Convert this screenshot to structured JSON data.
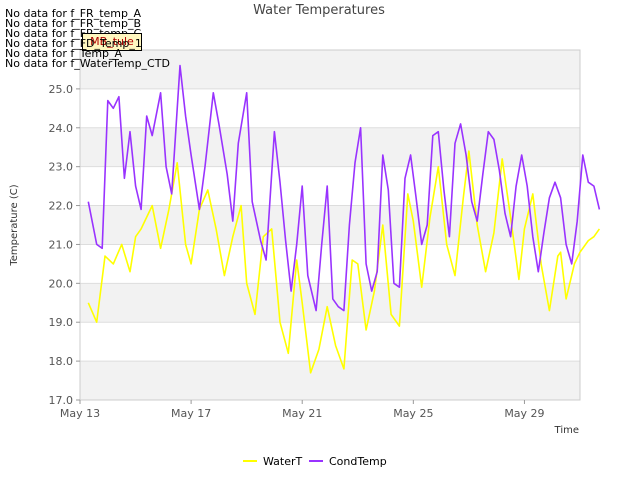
{
  "no_data_messages": [
    "No data for f_FR_temp_A",
    "No data for f_FR_temp_B",
    "No data for f_FR_temp_C",
    "No data for f_FD_Temp_1",
    "No data for f_Temp_A",
    "No data for f_WaterTemp_CTD"
  ],
  "tag_label": "MB_tule",
  "chart_data": {
    "type": "line",
    "title": "Water Temperatures",
    "xlabel": "Time",
    "ylabel": "Temperature (C)",
    "ylim": [
      17.0,
      26.0
    ],
    "yticks": [
      17.0,
      18.0,
      19.0,
      20.0,
      21.0,
      22.0,
      23.0,
      24.0,
      25.0
    ],
    "xlim": [
      13,
      31
    ],
    "xticks": [
      {
        "day": 13,
        "label": "May 13"
      },
      {
        "day": 17,
        "label": "May 17"
      },
      {
        "day": 21,
        "label": "May 21"
      },
      {
        "day": 25,
        "label": "May 25"
      },
      {
        "day": 29,
        "label": "May 29"
      }
    ],
    "grid": "horizontal bands",
    "legend_position": "bottom",
    "series": [
      {
        "name": "WaterT",
        "color": "#ffff00",
        "x": [
          13.3,
          13.6,
          13.9,
          14.2,
          14.5,
          14.8,
          15.0,
          15.2,
          15.6,
          15.9,
          16.2,
          16.5,
          16.8,
          17.0,
          17.3,
          17.6,
          17.9,
          18.2,
          18.5,
          18.8,
          19.0,
          19.3,
          19.6,
          19.9,
          20.2,
          20.5,
          20.8,
          21.0,
          21.3,
          21.6,
          21.9,
          22.2,
          22.5,
          22.8,
          23.0,
          23.3,
          23.6,
          23.9,
          24.2,
          24.5,
          24.8,
          25.0,
          25.3,
          25.6,
          25.9,
          26.2,
          26.5,
          26.8,
          27.0,
          27.3,
          27.6,
          27.9,
          28.2,
          28.5,
          28.8,
          29.0,
          29.3,
          29.6,
          29.9,
          30.2,
          30.3
        ],
        "y": [
          19.5,
          19.0,
          20.7,
          20.5,
          21.0,
          20.3,
          21.2,
          21.4,
          22.0,
          20.9,
          21.9,
          23.1,
          21.0,
          20.5,
          21.9,
          22.4,
          21.4,
          20.2,
          21.2,
          22.0,
          20.0,
          19.2,
          21.2,
          21.4,
          19.0,
          18.2,
          20.6,
          19.5,
          17.7,
          18.3,
          19.4,
          18.4,
          17.8,
          20.6,
          20.5,
          18.8,
          19.8,
          21.5,
          19.2,
          18.9,
          22.3,
          21.6,
          19.9,
          21.7,
          23.0,
          21.0,
          20.2,
          22.2,
          23.4,
          21.5,
          20.3,
          21.3,
          23.2,
          21.7,
          20.1,
          21.4,
          22.3,
          20.5,
          19.3,
          20.7,
          20.8
        ],
        "tail": {
          "x": [
            30.5,
            30.8,
            31.0,
            31.3,
            31.5,
            31.7
          ],
          "y": [
            19.6,
            20.5,
            20.8,
            21.1,
            21.2,
            21.4
          ]
        }
      },
      {
        "name": "CondTemp",
        "color": "#9933ff",
        "x": [
          13.3,
          13.6,
          13.8,
          14.0,
          14.2,
          14.4,
          14.6,
          14.8,
          15.0,
          15.2,
          15.4,
          15.6,
          15.9,
          16.1,
          16.3,
          16.6,
          16.8,
          17.0,
          17.3,
          17.5,
          17.8,
          18.0,
          18.3,
          18.5,
          18.7,
          19.0,
          19.2,
          19.5,
          19.7,
          20.0,
          20.2,
          20.4,
          20.6,
          20.8,
          21.0,
          21.2,
          21.5,
          21.7,
          21.9,
          22.1,
          22.3,
          22.5,
          22.7,
          22.9,
          23.1,
          23.3,
          23.5,
          23.7,
          23.9,
          24.1,
          24.3,
          24.5,
          24.7,
          24.9,
          25.1,
          25.3,
          25.5,
          25.7,
          25.9,
          26.1,
          26.3,
          26.5,
          26.7,
          26.9,
          27.1,
          27.3,
          27.5,
          27.7,
          27.9,
          28.1,
          28.3,
          28.5,
          28.7,
          28.9,
          29.1,
          29.3,
          29.5,
          29.7,
          29.9,
          30.1,
          30.3,
          30.5,
          30.7,
          30.9,
          31.1,
          31.3,
          31.5,
          31.7
        ],
        "y": [
          22.1,
          21.0,
          20.9,
          24.7,
          24.5,
          24.8,
          22.7,
          23.9,
          22.5,
          21.9,
          24.3,
          23.8,
          24.9,
          23.0,
          22.3,
          25.6,
          24.3,
          23.3,
          21.9,
          23.0,
          24.9,
          24.1,
          22.8,
          21.6,
          23.6,
          24.9,
          22.1,
          21.1,
          20.6,
          23.9,
          22.6,
          21.1,
          19.8,
          21.0,
          22.5,
          20.2,
          19.3,
          21.0,
          22.5,
          19.6,
          19.4,
          19.3,
          21.5,
          23.1,
          24.0,
          20.5,
          19.8,
          20.3,
          23.3,
          22.4,
          20.0,
          19.9,
          22.7,
          23.3,
          22.2,
          21.0,
          21.5,
          23.8,
          23.9,
          22.4,
          21.2,
          23.6,
          24.1,
          23.3,
          22.1,
          21.6,
          22.8,
          23.9,
          23.7,
          22.9,
          21.8,
          21.2,
          22.5,
          23.3,
          22.5,
          21.2,
          20.3,
          21.3,
          22.2,
          22.6,
          22.2,
          21.0,
          20.5,
          21.6,
          23.3,
          22.6,
          22.5,
          21.9
        ]
      }
    ]
  }
}
